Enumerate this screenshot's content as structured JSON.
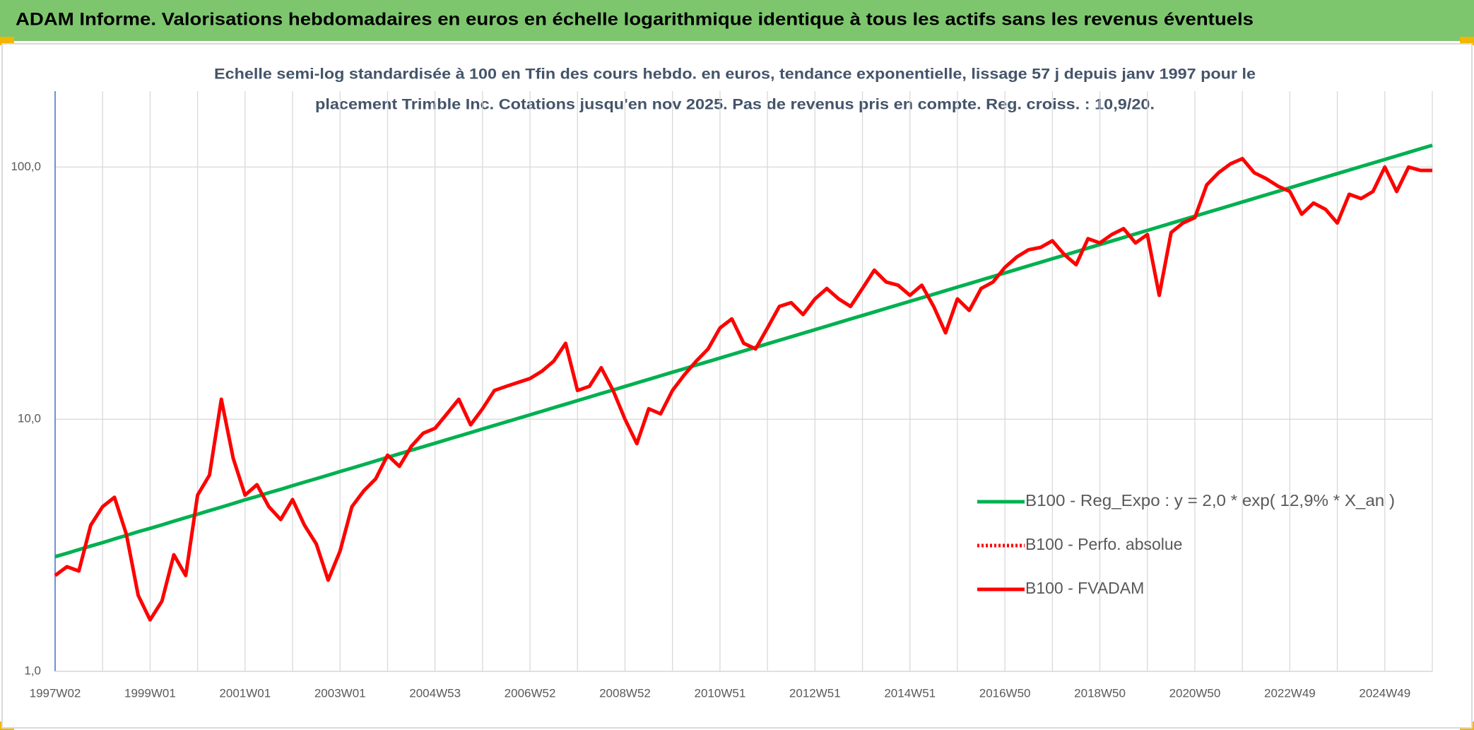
{
  "chart_data": {
    "type": "line",
    "title": "ADAM Informe. Valorisations hebdomadaires en euros en échelle logarithmique identique à tous les actifs sans les revenus éventuels",
    "subtitle": [
      "Echelle semi-log standardisée à 100 en Tfin des cours hebdo. en euros, tendance exponentielle, lissage 57 j depuis janv 1997 pour le",
      "placement Trimble Inc. Cotations jusqu'en nov 2025. Pas de revenus pris en compte. Reg. croiss. : 10,9/20."
    ],
    "log_scale": true,
    "grid": true,
    "legend_position": "right",
    "ylim": [
      1,
      200
    ],
    "yticks": [
      {
        "value": 1,
        "label": "1,0"
      },
      {
        "value": 10,
        "label": "10,0"
      },
      {
        "value": 100,
        "label": "100,0"
      }
    ],
    "categories": [
      "1997W02",
      null,
      null,
      null,
      null,
      null,
      null,
      null,
      "1999W01",
      null,
      null,
      null,
      null,
      null,
      null,
      null,
      "2001W01",
      null,
      null,
      null,
      null,
      null,
      null,
      null,
      "2003W01",
      null,
      null,
      null,
      null,
      null,
      null,
      null,
      "2004W53",
      null,
      null,
      null,
      null,
      null,
      null,
      null,
      "2006W52",
      null,
      null,
      null,
      null,
      null,
      null,
      null,
      "2008W52",
      null,
      null,
      null,
      null,
      null,
      null,
      null,
      "2010W51",
      null,
      null,
      null,
      null,
      null,
      null,
      null,
      "2012W51",
      null,
      null,
      null,
      null,
      null,
      null,
      null,
      "2014W51",
      null,
      null,
      null,
      null,
      null,
      null,
      null,
      "2016W50",
      null,
      null,
      null,
      null,
      null,
      null,
      null,
      "2018W50",
      null,
      null,
      null,
      null,
      null,
      null,
      null,
      "2020W50",
      null,
      null,
      null,
      null,
      null,
      null,
      null,
      "2022W49",
      null,
      null,
      null,
      null,
      null,
      null,
      null,
      "2024W49",
      null,
      null,
      null,
      null
    ],
    "series": [
      {
        "name": "B100 - Reg_Expo : y = 2,0 * exp( 12,9% *  X_an )",
        "color": "#00b050",
        "line_style": "solid",
        "values": [
          2.85,
          2.94,
          3.04,
          3.14,
          3.24,
          3.35,
          3.46,
          3.58,
          3.69,
          3.81,
          3.94,
          4.07,
          4.2,
          4.34,
          4.48,
          4.63,
          4.79,
          4.94,
          5.11,
          5.27,
          5.45,
          5.63,
          5.81,
          6.0,
          6.2,
          6.4,
          6.61,
          6.83,
          7.06,
          7.29,
          7.53,
          7.78,
          8.03,
          8.3,
          8.57,
          8.85,
          9.15,
          9.45,
          9.76,
          10.08,
          10.41,
          10.75,
          11.11,
          11.47,
          11.85,
          12.24,
          12.65,
          13.06,
          13.49,
          13.94,
          14.39,
          14.87,
          15.36,
          15.86,
          16.39,
          16.92,
          17.48,
          18.06,
          18.65,
          19.27,
          19.9,
          20.56,
          21.23,
          21.93,
          22.65,
          23.4,
          24.17,
          24.97,
          25.78,
          26.63,
          27.51,
          28.41,
          29.35,
          30.31,
          31.31,
          32.34,
          33.41,
          34.5,
          35.65,
          36.82,
          38.03,
          39.28,
          40.58,
          41.9,
          43.29,
          44.72,
          46.18,
          47.71,
          49.28,
          50.89,
          52.57,
          54.31,
          56.09,
          57.94,
          59.85,
          61.82,
          63.86,
          65.96,
          68.13,
          70.38,
          72.7,
          75.09,
          77.57,
          80.12,
          82.76,
          85.49,
          88.31,
          91.22,
          94.19,
          97.3,
          100.5,
          103.8,
          107.2,
          110.7,
          114.4,
          118.2,
          122.0
        ]
      },
      {
        "name": "B100 - Perfo. absolue",
        "color": "#ff0000",
        "line_style": "dotted"
      },
      {
        "name": "B100 - FVADAM",
        "color": "#ff0000",
        "line_style": "solid",
        "values": [
          2.4,
          2.6,
          2.5,
          3.8,
          4.5,
          4.9,
          3.5,
          2.0,
          1.6,
          1.9,
          2.9,
          2.4,
          5.0,
          6.0,
          12.0,
          7.0,
          5.0,
          5.5,
          4.5,
          4.0,
          4.8,
          3.8,
          3.2,
          2.3,
          3.0,
          4.5,
          5.2,
          5.8,
          7.2,
          6.5,
          7.8,
          8.8,
          9.2,
          10.5,
          12.0,
          9.5,
          11.0,
          13.0,
          13.5,
          14.0,
          14.5,
          15.5,
          17.0,
          20.0,
          13.0,
          13.5,
          16.0,
          13.0,
          10.0,
          8.0,
          11.0,
          10.5,
          13.0,
          15.0,
          17.0,
          19.0,
          23.0,
          25.0,
          20.0,
          19.0,
          23.0,
          28.0,
          29.0,
          26.0,
          30.0,
          33.0,
          30.0,
          28.0,
          33.0,
          39.0,
          35.0,
          34.0,
          31.0,
          34.0,
          28.0,
          22.0,
          30.0,
          27.0,
          33.0,
          35.0,
          40.0,
          44.0,
          47.0,
          48.0,
          51.0,
          45.0,
          41.0,
          52.0,
          50.0,
          54.0,
          57.0,
          50.0,
          54.0,
          31.0,
          55.0,
          60.0,
          63.0,
          85.0,
          95.0,
          103.0,
          108.0,
          95.0,
          90.0,
          84.0,
          80.0,
          65.0,
          72.0,
          68.0,
          60.0,
          78.0,
          75.0,
          80.0,
          100.0,
          80.0,
          100.0,
          97.0,
          97.0
        ]
      }
    ]
  }
}
